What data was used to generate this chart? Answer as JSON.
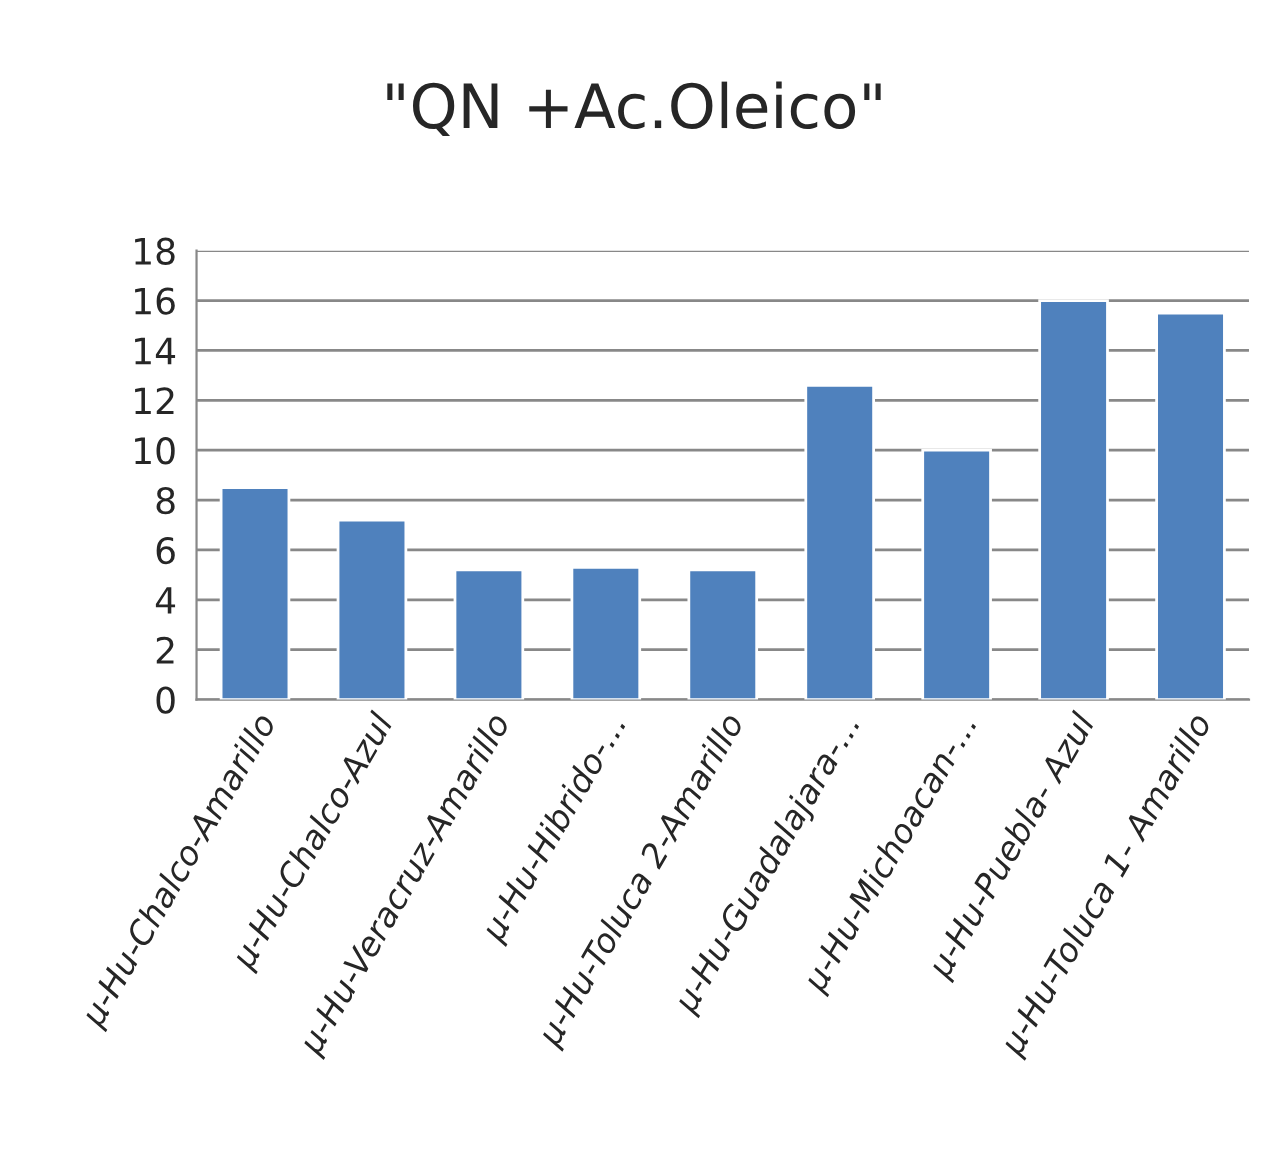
{
  "chart_data": {
    "type": "bar",
    "title": "\"QN +Ac.Oleico\"",
    "categories": [
      "µ-Hu-Chalco-Amarillo",
      "µ-Hu-Chalco-Azul",
      "µ-Hu-Veracruz-Amarillo",
      "µ-Hu-Hibrido-...",
      "µ-Hu-Toluca 2-Amarillo",
      "µ-Hu-Guadalajara-...",
      "µ-Hu-Michoacan-...",
      "µ-Hu-Puebla- Azul",
      "µ-Hu-Toluca 1- Amarillo"
    ],
    "values": [
      8.5,
      7.2,
      5.2,
      5.3,
      5.2,
      12.6,
      10.0,
      16.0,
      15.5
    ],
    "color": "#4f81bd",
    "ylim": [
      0,
      18
    ],
    "yticks": [
      0,
      2,
      4,
      6,
      8,
      10,
      12,
      14,
      16,
      18
    ],
    "grid": "y",
    "legend": false
  }
}
